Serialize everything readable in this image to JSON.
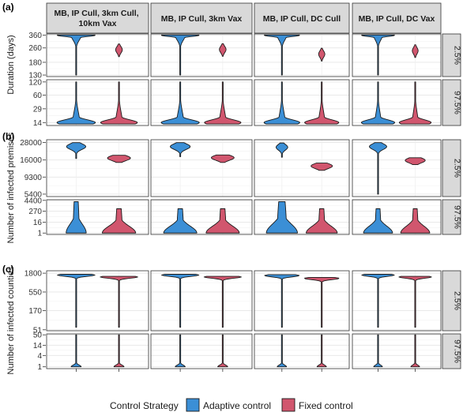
{
  "chart_data": {
    "type": "violin",
    "legend": {
      "title": "Control Strategy",
      "placement": "bottom",
      "entries": [
        {
          "name": "Adaptive control",
          "color": "#3b8fd6"
        },
        {
          "name": "Fixed control",
          "color": "#d1566e"
        }
      ]
    },
    "facet_columns": [
      "MB, IP Cull, 3km Cull, 10km Vax",
      "MB, IP Cull, 3km Vax",
      "MB, IP Cull, DC Cull",
      "MB, IP Cull, DC Vax"
    ],
    "series": [
      {
        "name": "Adaptive control",
        "color": "#3b8fd6"
      },
      {
        "name": "Fixed control",
        "color": "#d1566e"
      }
    ],
    "sections": [
      {
        "label": "(a)",
        "ylabel": "Duration (days)",
        "rows": [
          {
            "strip": "2.5%",
            "ticks": [
              130,
              180,
              260,
              360
            ],
            "ylim": [
              125,
              372
            ],
            "violins": [
              [
                {
                  "center": 360,
                  "min": 130,
                  "max": 362,
                  "width": 0.92,
                  "spread": 0.018,
                  "tail": 0.26
                },
                {
                  "center": 248,
                  "min": 208,
                  "max": 288,
                  "width": 0.16,
                  "spread": 0.075,
                  "tail": 0
                }
              ],
              [
                {
                  "center": 360,
                  "min": 130,
                  "max": 362,
                  "width": 0.92,
                  "spread": 0.018,
                  "tail": 0.26
                },
                {
                  "center": 250,
                  "min": 210,
                  "max": 290,
                  "width": 0.16,
                  "spread": 0.075,
                  "tail": 0
                }
              ],
              [
                {
                  "center": 360,
                  "min": 130,
                  "max": 362,
                  "width": 0.92,
                  "spread": 0.018,
                  "tail": 0.26
                },
                {
                  "center": 222,
                  "min": 186,
                  "max": 258,
                  "width": 0.16,
                  "spread": 0.075,
                  "tail": 0
                }
              ],
              [
                {
                  "center": 360,
                  "min": 130,
                  "max": 362,
                  "width": 0.92,
                  "spread": 0.018,
                  "tail": 0.26
                },
                {
                  "center": 242,
                  "min": 204,
                  "max": 282,
                  "width": 0.16,
                  "spread": 0.075,
                  "tail": 0
                }
              ]
            ]
          },
          {
            "strip": "97.5%",
            "ticks": [
              14,
              29,
              60,
              120
            ],
            "ylim": [
              12,
              135
            ],
            "violins": [
              [
                {
                  "center": 14,
                  "min": 13,
                  "max": 120,
                  "width": 0.92,
                  "spread": 0.06,
                  "tail": 0.18
                },
                {
                  "center": 14,
                  "min": 13,
                  "max": 120,
                  "width": 0.88,
                  "spread": 0.06,
                  "tail": 0.18
                }
              ],
              [
                {
                  "center": 14,
                  "min": 13,
                  "max": 120,
                  "width": 0.92,
                  "spread": 0.06,
                  "tail": 0.18
                },
                {
                  "center": 14,
                  "min": 13,
                  "max": 120,
                  "width": 0.88,
                  "spread": 0.06,
                  "tail": 0.18
                }
              ],
              [
                {
                  "center": 14,
                  "min": 13,
                  "max": 120,
                  "width": 0.92,
                  "spread": 0.06,
                  "tail": 0.18
                },
                {
                  "center": 14,
                  "min": 13,
                  "max": 120,
                  "width": 0.88,
                  "spread": 0.06,
                  "tail": 0.18
                }
              ],
              [
                {
                  "center": 14,
                  "min": 13,
                  "max": 120,
                  "width": 0.92,
                  "spread": 0.06,
                  "tail": 0.18
                },
                {
                  "center": 14,
                  "min": 13,
                  "max": 120,
                  "width": 0.88,
                  "spread": 0.06,
                  "tail": 0.18
                }
              ]
            ]
          }
        ]
      },
      {
        "label": "(b)",
        "ylabel": "Number of infected premises",
        "rows": [
          {
            "strip": "2.5%",
            "ticks": [
              5400,
              9300,
              16000,
              28000
            ],
            "ylim": [
              5000,
              30500
            ],
            "violins": [
              [
                {
                  "center": 24500,
                  "min": 16800,
                  "max": 27800,
                  "width": 0.46,
                  "spread": 0.05,
                  "tail": 0
                },
                {
                  "center": 17000,
                  "min": 14800,
                  "max": 18600,
                  "width": 0.55,
                  "spread": 0.045,
                  "tail": 0
                }
              ],
              [
                {
                  "center": 24500,
                  "min": 17800,
                  "max": 27800,
                  "width": 0.48,
                  "spread": 0.05,
                  "tail": 0
                },
                {
                  "center": 17200,
                  "min": 14800,
                  "max": 18800,
                  "width": 0.55,
                  "spread": 0.045,
                  "tail": 0
                }
              ],
              [
                {
                  "center": 24000,
                  "min": 17500,
                  "max": 27500,
                  "width": 0.3,
                  "spread": 0.05,
                  "tail": 0
                },
                {
                  "center": 13200,
                  "min": 11500,
                  "max": 14500,
                  "width": 0.55,
                  "spread": 0.045,
                  "tail": 0
                }
              ],
              [
                {
                  "center": 24500,
                  "min": 5400,
                  "max": 27800,
                  "width": 0.48,
                  "spread": 0.05,
                  "tail": 0
                },
                {
                  "center": 15800,
                  "min": 13800,
                  "max": 17200,
                  "width": 0.55,
                  "spread": 0.045,
                  "tail": 0
                }
              ]
            ]
          },
          {
            "strip": "97.5%",
            "ticks": [
              1,
              16,
              270,
              4400
            ],
            "ylim": [
              0.7,
              5200
            ],
            "violins": [
              [
                {
                  "center": 1,
                  "min": 1,
                  "max": 3200,
                  "width": 0.48,
                  "spread": 0.26,
                  "tail": 0.3
                },
                {
                  "center": 1,
                  "min": 1,
                  "max": 520,
                  "width": 0.8,
                  "spread": 0.2,
                  "tail": 0.2
                }
              ],
              [
                {
                  "center": 1,
                  "min": 1,
                  "max": 520,
                  "width": 0.8,
                  "spread": 0.2,
                  "tail": 0.2
                },
                {
                  "center": 1,
                  "min": 1,
                  "max": 520,
                  "width": 0.8,
                  "spread": 0.2,
                  "tail": 0.2
                }
              ],
              [
                {
                  "center": 1,
                  "min": 1,
                  "max": 3200,
                  "width": 0.8,
                  "spread": 0.26,
                  "tail": 0.3
                },
                {
                  "center": 1,
                  "min": 1,
                  "max": 520,
                  "width": 0.8,
                  "spread": 0.2,
                  "tail": 0.2
                }
              ],
              [
                {
                  "center": 1,
                  "min": 1,
                  "max": 520,
                  "width": 0.8,
                  "spread": 0.2,
                  "tail": 0.2
                },
                {
                  "center": 1,
                  "min": 1,
                  "max": 520,
                  "width": 0.8,
                  "spread": 0.2,
                  "tail": 0.2
                }
              ]
            ]
          }
        ]
      },
      {
        "label": "(c)",
        "ylabel": "Number of infected counties",
        "rows": [
          {
            "strip": "2.5%",
            "ticks": [
              51,
              170,
              550,
              1800
            ],
            "ylim": [
              48,
              2100
            ],
            "violins": [
              [
                {
                  "center": 1600,
                  "min": 60,
                  "max": 1680,
                  "width": 0.9,
                  "spread": 0.012,
                  "tail": 0
                },
                {
                  "center": 1420,
                  "min": 60,
                  "max": 1480,
                  "width": 0.9,
                  "spread": 0.012,
                  "tail": 0
                }
              ],
              [
                {
                  "center": 1600,
                  "min": 60,
                  "max": 1680,
                  "width": 0.9,
                  "spread": 0.012,
                  "tail": 0
                },
                {
                  "center": 1420,
                  "min": 60,
                  "max": 1480,
                  "width": 0.9,
                  "spread": 0.012,
                  "tail": 0
                }
              ],
              [
                {
                  "center": 1550,
                  "min": 60,
                  "max": 1640,
                  "width": 0.9,
                  "spread": 0.012,
                  "tail": 0
                },
                {
                  "center": 1300,
                  "min": 60,
                  "max": 1380,
                  "width": 0.9,
                  "spread": 0.012,
                  "tail": 0
                }
              ],
              [
                {
                  "center": 1600,
                  "min": 60,
                  "max": 1680,
                  "width": 0.9,
                  "spread": 0.012,
                  "tail": 0
                },
                {
                  "center": 1420,
                  "min": 60,
                  "max": 1480,
                  "width": 0.9,
                  "spread": 0.012,
                  "tail": 0
                }
              ]
            ]
          },
          {
            "strip": "97.5%",
            "ticks": [
              1,
              4,
              14,
              50
            ],
            "ylim": [
              0.8,
              56
            ],
            "violins": [
              [
                {
                  "center": 1,
                  "min": 1,
                  "max": 50,
                  "width": 0.24,
                  "spread": 0.05,
                  "tail": 0
                },
                {
                  "center": 1,
                  "min": 1,
                  "max": 50,
                  "width": 0.24,
                  "spread": 0.05,
                  "tail": 0
                }
              ],
              [
                {
                  "center": 1,
                  "min": 1,
                  "max": 50,
                  "width": 0.24,
                  "spread": 0.05,
                  "tail": 0
                },
                {
                  "center": 1,
                  "min": 1,
                  "max": 50,
                  "width": 0.24,
                  "spread": 0.05,
                  "tail": 0
                }
              ],
              [
                {
                  "center": 1,
                  "min": 1,
                  "max": 50,
                  "width": 0.24,
                  "spread": 0.05,
                  "tail": 0
                },
                {
                  "center": 1,
                  "min": 1,
                  "max": 50,
                  "width": 0.24,
                  "spread": 0.05,
                  "tail": 0
                }
              ],
              [
                {
                  "center": 1,
                  "min": 1,
                  "max": 50,
                  "width": 0.24,
                  "spread": 0.05,
                  "tail": 0
                },
                {
                  "center": 1,
                  "min": 1,
                  "max": 50,
                  "width": 0.24,
                  "spread": 0.05,
                  "tail": 0
                }
              ]
            ]
          }
        ]
      }
    ]
  }
}
